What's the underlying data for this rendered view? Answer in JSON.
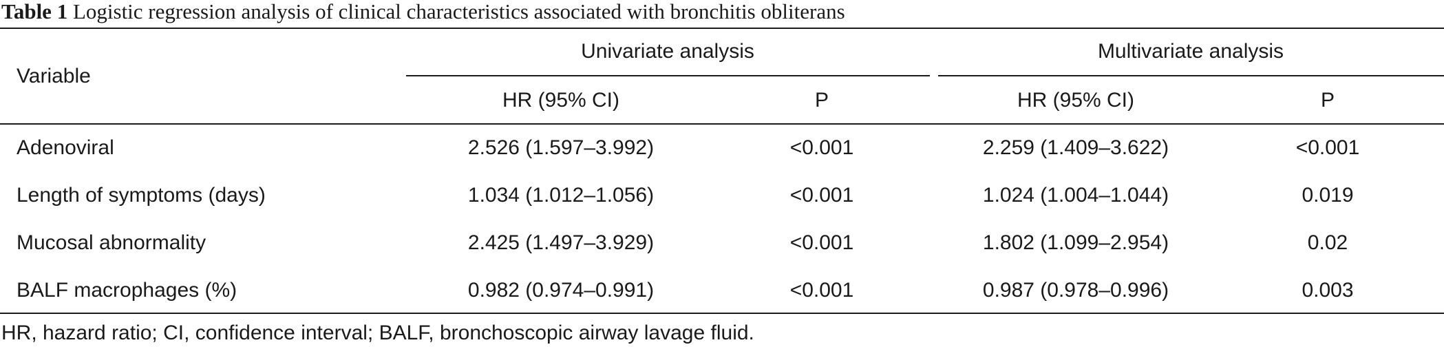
{
  "caption": {
    "label": "Table 1",
    "text": "Logistic regression analysis of clinical characteristics associated with bronchitis obliterans"
  },
  "table": {
    "variable_header": "Variable",
    "groups": [
      "Univariate analysis",
      "Multivariate analysis"
    ],
    "subheaders": [
      "HR (95% CI)",
      "P",
      "HR (95% CI)",
      "P"
    ],
    "rows": [
      {
        "variable": "Adenoviral",
        "uni_hr": "2.526 (1.597–3.992)",
        "uni_p": "<0.001",
        "multi_hr": "2.259 (1.409–3.622)",
        "multi_p": "<0.001"
      },
      {
        "variable": "Length of symptoms (days)",
        "uni_hr": "1.034 (1.012–1.056)",
        "uni_p": "<0.001",
        "multi_hr": "1.024 (1.004–1.044)",
        "multi_p": "0.019"
      },
      {
        "variable": "Mucosal abnormality",
        "uni_hr": "2.425 (1.497–3.929)",
        "uni_p": "<0.001",
        "multi_hr": "1.802 (1.099–2.954)",
        "multi_p": "0.02"
      },
      {
        "variable": "BALF macrophages (%)",
        "uni_hr": "0.982 (0.974–0.991)",
        "uni_p": "<0.001",
        "multi_hr": "0.987 (0.978–0.996)",
        "multi_p": "0.003"
      }
    ]
  },
  "footnote": "HR, hazard ratio; CI, confidence interval; BALF, bronchoscopic airway lavage fluid."
}
